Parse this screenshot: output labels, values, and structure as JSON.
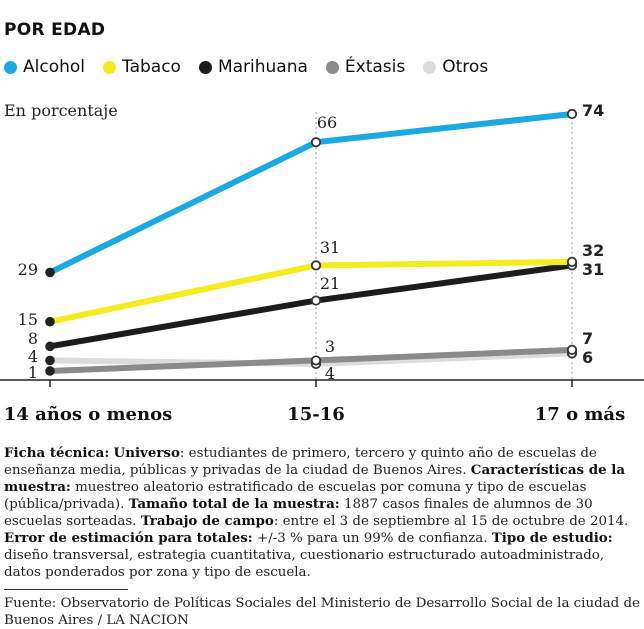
{
  "chart_data": {
    "type": "line",
    "title": "POR EDAD",
    "ylabel": "En porcentaje",
    "categories": [
      "14 años o menos",
      "15-16",
      "17 o más"
    ],
    "ylim": [
      0,
      78
    ],
    "grid": false,
    "legend_position": "top",
    "series": [
      {
        "name": "Alcohol",
        "color": "#1aa9e0",
        "values": [
          29,
          66,
          74
        ]
      },
      {
        "name": "Tabaco",
        "color": "#f4ec1e",
        "values": [
          15,
          31,
          32
        ]
      },
      {
        "name": "Marihuana",
        "color": "#1c1c1c",
        "values": [
          8,
          21,
          31
        ]
      },
      {
        "name": "Éxtasis",
        "color": "#8a8a8a",
        "values": [
          1,
          4,
          7
        ]
      },
      {
        "name": "Otros",
        "color": "#dcdcdc",
        "values": [
          4,
          3,
          6
        ]
      }
    ]
  },
  "notes": {
    "ficha_label": "Ficha técnica:",
    "universo_label": "Universo",
    "universo_text": ": estudiantes de primero, tercero y quinto año de escuelas de enseñanza media, públicas y privadas de la ciudad de Buenos Aires.",
    "caracteristicas_label": "Características de la muestra:",
    "caracteristicas_text": " muestreo aleatorio estratificado de escuelas por comuna y tipo de escuelas (pública/privada).",
    "tamano_label": "Tamaño total de la muestra:",
    "tamano_text": " 1887 casos finales de alumnos de 30 escuelas sorteadas.",
    "trabajo_label": "Trabajo de campo",
    "trabajo_text": ": entre el 3 de septiembre al 15 de octubre de 2014.",
    "error_label": "Error de estimación para totales:",
    "error_text": " +/-3 % para un 99% de confianza.",
    "tipo_label": "Tipo de estudio:",
    "tipo_text": " diseño transversal, estrategia cuantitativa, cuestionario estructurado autoadministrado, datos ponderados por zona y tipo de escuela."
  },
  "source": "Fuente: Observatorio de Políticas Sociales del Ministerio de Desarrollo Social de la ciudad de Buenos Aires / LA NACION"
}
